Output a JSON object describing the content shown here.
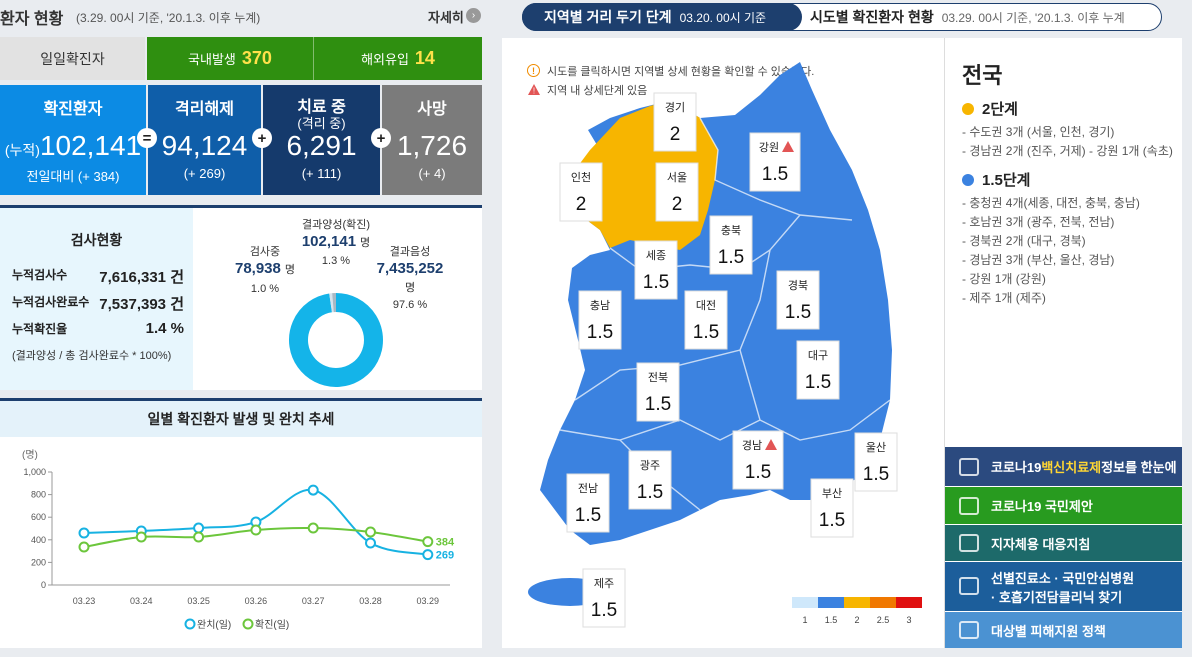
{
  "header": {
    "title": "환자 현황",
    "basis": "(3.29. 00시 기준, '20.1.3. 이후 누계)",
    "more": "자세히"
  },
  "daily": {
    "label": "일일확진자",
    "items": [
      {
        "label": "국내발생",
        "value": 370
      },
      {
        "label": "해외유입",
        "value": 14
      }
    ]
  },
  "summary": [
    {
      "title": "확진환자",
      "prefix": "(누적)",
      "value": "102,141",
      "change": "전일대비 (+ 384)"
    },
    {
      "title": "격리해제",
      "value": "94,124",
      "change": "(+ 269)"
    },
    {
      "title": "치료 중",
      "subtitle": "(격리 중)",
      "value": "6,291",
      "change": "(+ 111)"
    },
    {
      "title": "사망",
      "value": "1,726",
      "change": "(+ 4)"
    }
  ],
  "operators": [
    "=",
    "+",
    "+"
  ],
  "tests": {
    "title": "검사현황",
    "rows": [
      {
        "label": "누적검사수",
        "value": "7,616,331 건"
      },
      {
        "label": "누적검사완료수",
        "value": "7,537,393 건"
      },
      {
        "label": "누적확진율",
        "value": "1.4 %"
      }
    ],
    "note": "(결과양성 / 총 검사완료수 * 100%)"
  },
  "chart_data": [
    {
      "type": "line",
      "title": "일별 확진환자 발생 및 완치 추세",
      "y_label": "(명)",
      "categories": [
        "03.23",
        "03.24",
        "03.25",
        "03.26",
        "03.27",
        "03.28",
        "03.29"
      ],
      "series": [
        {
          "name": "완치(일)",
          "color": "#17b2e2",
          "values": [
            460,
            478,
            504,
            557,
            840,
            372,
            269
          ]
        },
        {
          "name": "확진(일)",
          "color": "#6cc63c",
          "values": [
            336,
            425,
            425,
            487,
            504,
            469,
            384
          ]
        }
      ],
      "ylim": [
        0,
        1000
      ],
      "yticks": [
        0,
        200,
        400,
        600,
        800,
        {
          "value": 1000,
          "label": "1,000"
        }
      ]
    },
    {
      "type": "donut",
      "categories": [
        "결과음성",
        "검사중",
        "결과양성(확진)"
      ],
      "counts": [
        "7,435,252",
        "78,938",
        "102,141"
      ],
      "count_unit": "명",
      "values": [
        97.6,
        1.0,
        1.3
      ],
      "value_labels": [
        "97.6 %",
        "1.0 %",
        "1.3 %"
      ],
      "colors": [
        "#14b4e9",
        "#d6e4ee",
        "#a9b8c4"
      ]
    }
  ],
  "tabs": [
    {
      "title": "지역별 거리 두기 단계",
      "basis": "03.20. 00시 기준"
    },
    {
      "title": "시도별 확진환자 현황",
      "basis": "03.29. 00시 기준, '20.1.3. 이후 누계"
    }
  ],
  "notes": [
    "시도를 클릭하시면 지역별 상세 현황을 확인할 수 있습니다.",
    "지역 내 상세단계 있음"
  ],
  "regions": [
    {
      "name": "경기",
      "level": 2
    },
    {
      "name": "강원",
      "level": 1.5,
      "detail": true
    },
    {
      "name": "인천",
      "level": 2
    },
    {
      "name": "서울",
      "level": 2
    },
    {
      "name": "충북",
      "level": 1.5
    },
    {
      "name": "세종",
      "level": 1.5
    },
    {
      "name": "경북",
      "level": 1.5
    },
    {
      "name": "충남",
      "level": 1.5
    },
    {
      "name": "대전",
      "level": 1.5
    },
    {
      "name": "대구",
      "level": 1.5
    },
    {
      "name": "전북",
      "level": 1.5
    },
    {
      "name": "경남",
      "level": 1.5,
      "detail": true
    },
    {
      "name": "울산",
      "level": 1.5
    },
    {
      "name": "광주",
      "level": 1.5
    },
    {
      "name": "부산",
      "level": 1.5
    },
    {
      "name": "전남",
      "level": 1.5
    },
    {
      "name": "제주",
      "level": 1.5
    }
  ],
  "legend": {
    "levels": [
      1,
      1.5,
      2,
      2.5,
      3
    ],
    "colors": [
      "#cfe8fb",
      "#3b82e0",
      "#f7b500",
      "#f07800",
      "#e01010"
    ]
  },
  "stage_summary": {
    "title": "전국",
    "groups": [
      {
        "label": "2단계",
        "color": "#f7b500",
        "items": [
          "- 수도권 3개 (서울, 인천, 경기)",
          "- 경남권 2개 (진주, 거제) - 강원 1개 (속초)"
        ]
      },
      {
        "label": "1.5단계",
        "color": "#3b82e0",
        "items": [
          "- 충청권 4개(세종, 대전, 충북, 충남)",
          "- 호남권 3개 (광주, 전북, 전남)",
          "- 경북권 2개 (대구, 경북)",
          "- 경남권 3개 (부산, 울산, 경남)",
          "- 강원 1개 (강원)",
          "- 제주 1개 (제주)"
        ]
      }
    ]
  },
  "links": [
    {
      "parts": [
        "코로나19 ",
        "백신치료제",
        " 정보를 한눈에"
      ]
    },
    {
      "text": "코로나19 국민제안"
    },
    {
      "text": "지자체용 대응지침"
    },
    {
      "lines": [
        "선별진료소 · 국민안심병원",
        "· 호흡기전담클리닉 찾기"
      ]
    },
    {
      "text": "대상별 피해지원 정책"
    }
  ]
}
